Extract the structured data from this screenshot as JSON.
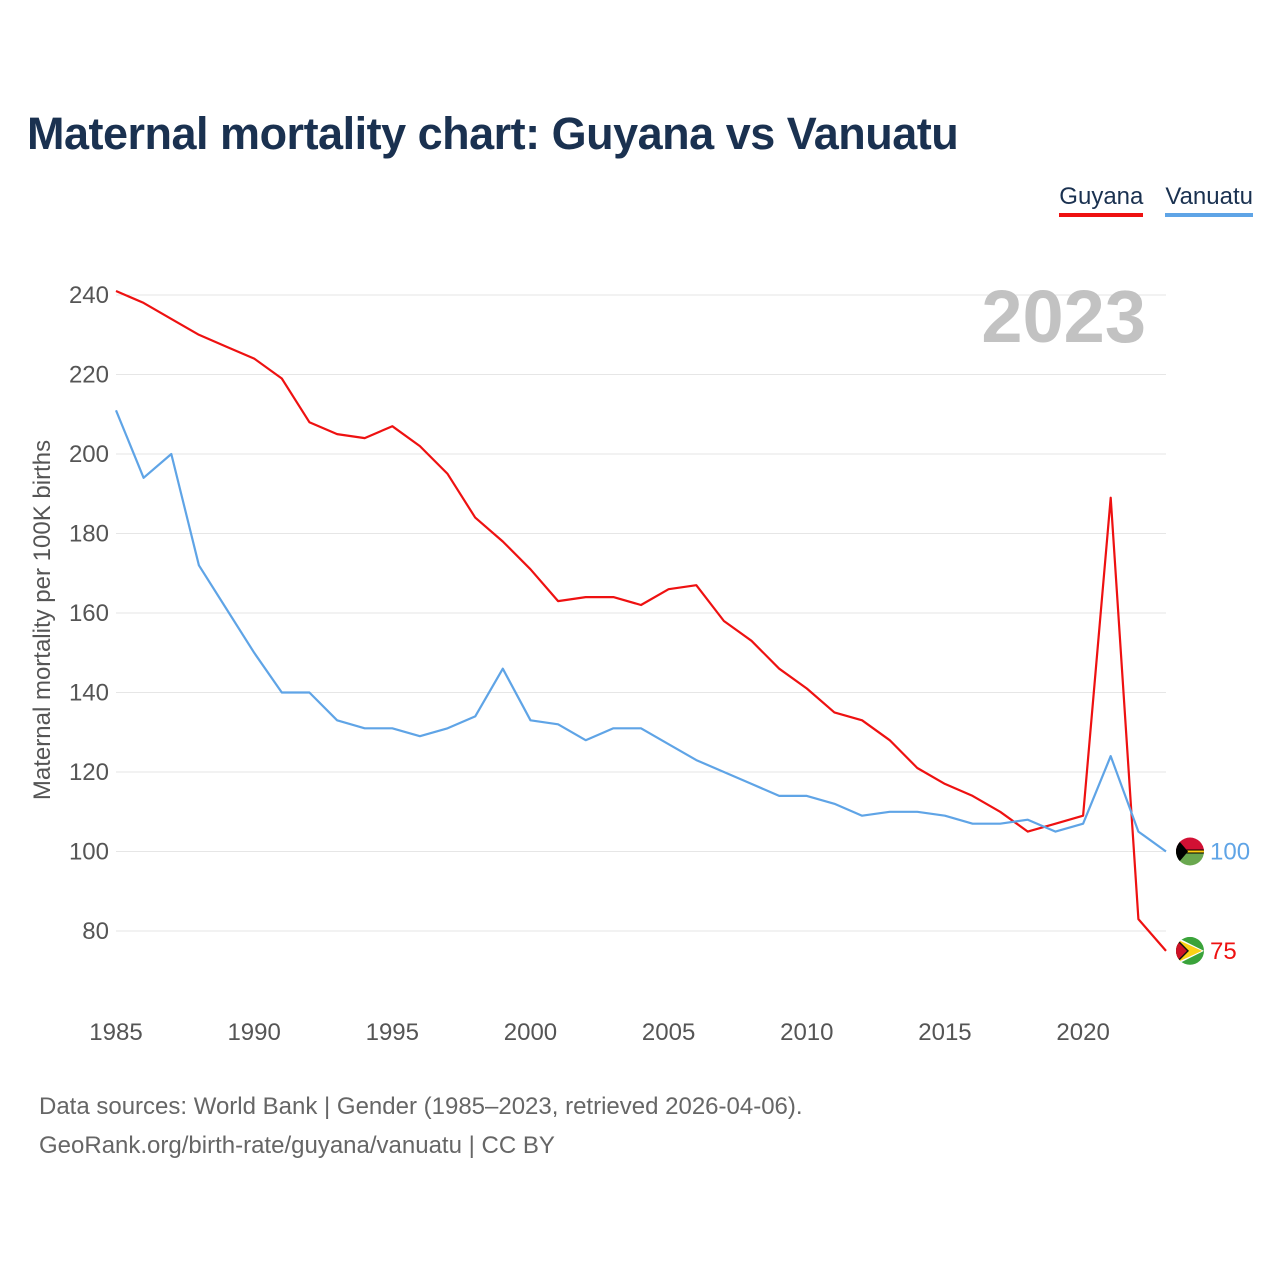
{
  "title": "Maternal mortality chart: Guyana vs Vanuatu",
  "year_watermark": "2023",
  "source_line1": "Data sources: World Bank | Gender (1985–2023, retrieved 2026-04-06).",
  "source_line2": "GeoRank.org/birth-rate/guyana/vanuatu | CC BY",
  "legend": [
    {
      "name": "Guyana",
      "color": "#ee1111"
    },
    {
      "name": "Vanuatu",
      "color": "#5fa4e6"
    }
  ],
  "chart_data": {
    "type": "line",
    "title": "Maternal mortality chart: Guyana vs Vanuatu",
    "xlabel": "",
    "ylabel": "Maternal mortality per 100K births",
    "xlim": [
      1985,
      2023
    ],
    "ylim": [
      70,
      250
    ],
    "x_ticks": [
      1985,
      1990,
      1995,
      2000,
      2005,
      2010,
      2015,
      2020
    ],
    "y_ticks": [
      80,
      100,
      120,
      140,
      160,
      180,
      200,
      220,
      240
    ],
    "grid": true,
    "legend_position": "top-right",
    "x": [
      1985,
      1986,
      1987,
      1988,
      1989,
      1990,
      1991,
      1992,
      1993,
      1994,
      1995,
      1996,
      1997,
      1998,
      1999,
      2000,
      2001,
      2002,
      2003,
      2004,
      2005,
      2006,
      2007,
      2008,
      2009,
      2010,
      2011,
      2012,
      2013,
      2014,
      2015,
      2016,
      2017,
      2018,
      2019,
      2020,
      2021,
      2022,
      2023
    ],
    "series": [
      {
        "name": "Guyana",
        "color": "#ee1111",
        "end_label": "75",
        "values": [
          241,
          238,
          234,
          230,
          227,
          224,
          219,
          208,
          205,
          204,
          207,
          202,
          195,
          184,
          178,
          171,
          163,
          164,
          164,
          162,
          166,
          167,
          158,
          153,
          146,
          141,
          135,
          133,
          128,
          121,
          117,
          114,
          110,
          105,
          107,
          109,
          189,
          83,
          75
        ]
      },
      {
        "name": "Vanuatu",
        "color": "#5fa4e6",
        "end_label": "100",
        "values": [
          211,
          194,
          200,
          172,
          161,
          150,
          140,
          140,
          133,
          131,
          131,
          129,
          131,
          134,
          146,
          133,
          132,
          128,
          131,
          131,
          127,
          123,
          120,
          117,
          114,
          114,
          112,
          109,
          110,
          110,
          109,
          107,
          107,
          108,
          105,
          107,
          124,
          105,
          100
        ]
      }
    ]
  }
}
